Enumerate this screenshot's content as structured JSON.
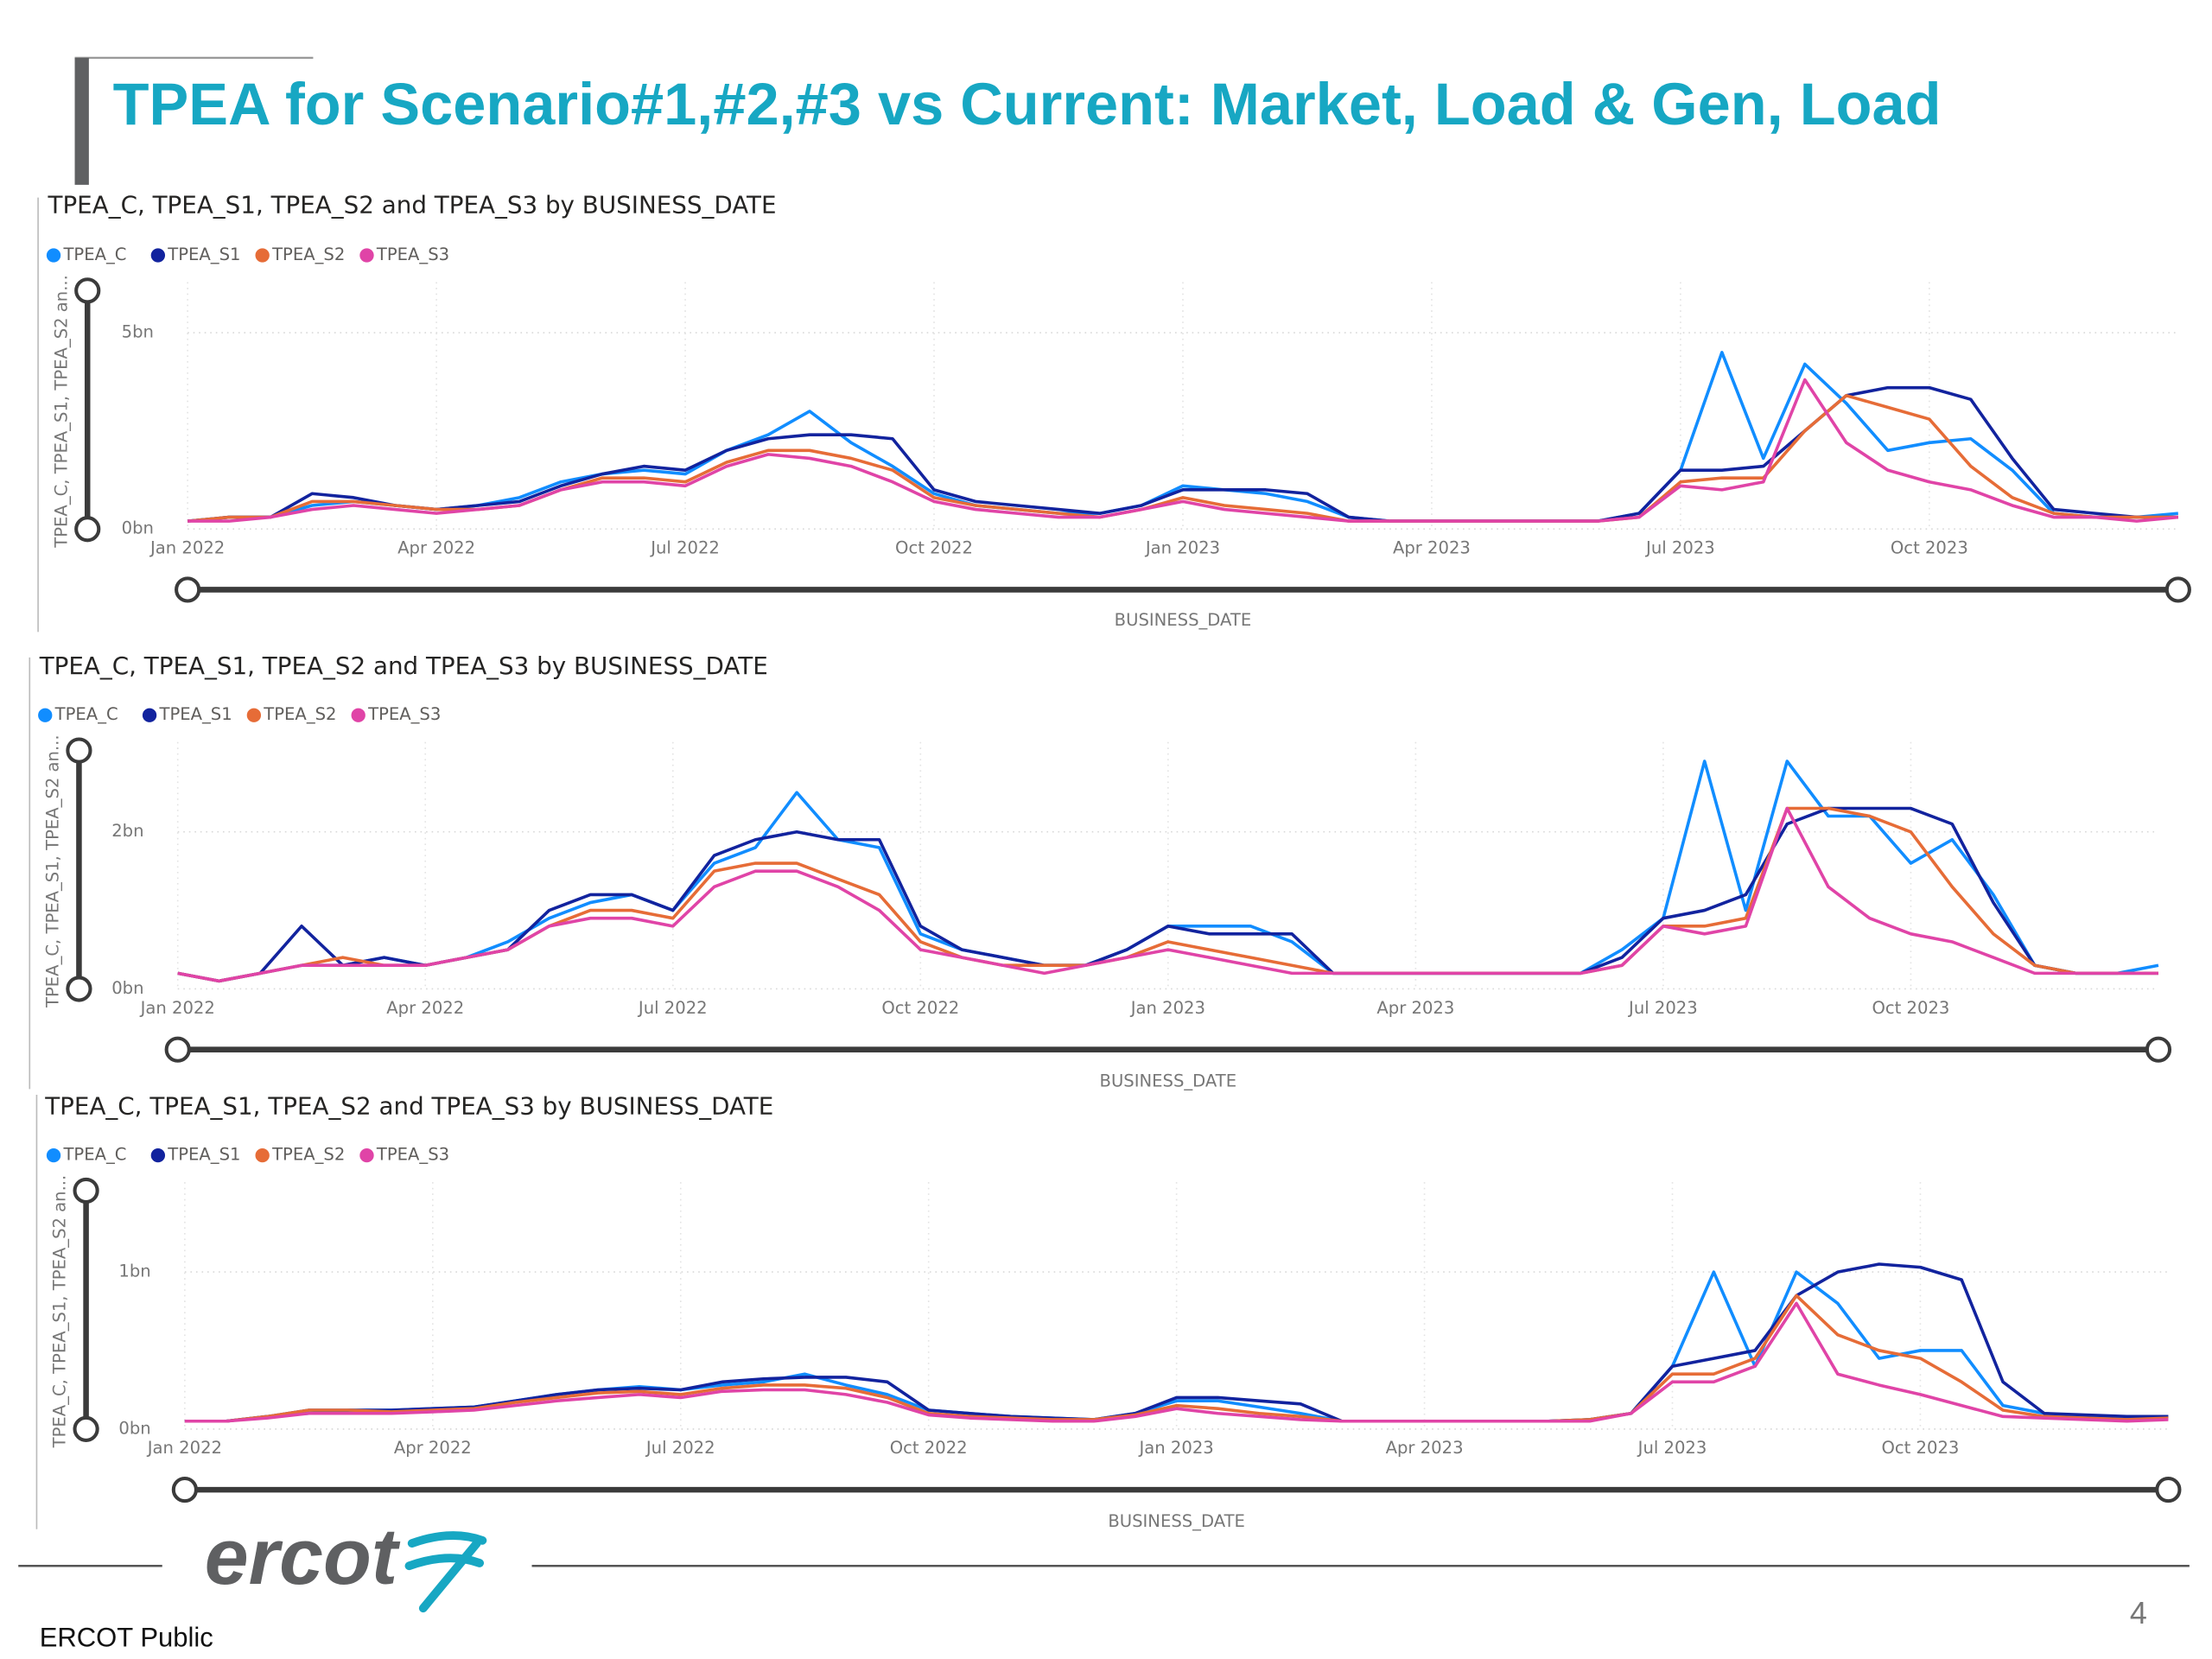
{
  "header": {
    "title": "TPEA for Scenario#1,#2,#3 vs Current: Market, Load & Gen, Load"
  },
  "chart_data": [
    {
      "type": "line",
      "title": "TPEA_C, TPEA_S1, TPEA_S2 and TPEA_S3 by BUSINESS_DATE",
      "x_label": "BUSINESS_DATE",
      "y_label": "TPEA_C, TPEA_S1, TPEA_S2 an...",
      "x": [
        0,
        0.5,
        1,
        1.5,
        2,
        2.5,
        3,
        3.5,
        4,
        4.5,
        5,
        5.5,
        6,
        6.5,
        7,
        7.5,
        8,
        8.5,
        9,
        9.5,
        10,
        10.5,
        11,
        11.5,
        12,
        12.5,
        13,
        13.5,
        14,
        14.5,
        15,
        15.5,
        16,
        16.5,
        17,
        17.5,
        18,
        18.5,
        19,
        19.5,
        20,
        20.5,
        21,
        21.5,
        22,
        22.5,
        23,
        23.5,
        24
      ],
      "xlim": [
        0,
        24
      ],
      "xticks": [
        {
          "value": 0,
          "label": "Jan 2022"
        },
        {
          "value": 3,
          "label": "Apr 2022"
        },
        {
          "value": 6,
          "label": "Jul 2022"
        },
        {
          "value": 9,
          "label": "Oct 2022"
        },
        {
          "value": 12,
          "label": "Jan 2023"
        },
        {
          "value": 15,
          "label": "Apr 2023"
        },
        {
          "value": 18,
          "label": "Jul 2023"
        },
        {
          "value": 21,
          "label": "Oct 2023"
        }
      ],
      "ylim": [
        0,
        6
      ],
      "yticks": [
        {
          "value": 0,
          "label": "0bn"
        },
        {
          "value": 5,
          "label": "5bn"
        }
      ],
      "grid": true,
      "series": [
        {
          "name": "TPEA_C",
          "color": "#118dff",
          "values": [
            0.2,
            0.3,
            0.3,
            0.6,
            0.7,
            0.6,
            0.5,
            0.6,
            0.8,
            1.2,
            1.4,
            1.5,
            1.4,
            2.0,
            2.4,
            3.0,
            2.2,
            1.6,
            0.9,
            0.6,
            0.5,
            0.4,
            0.4,
            0.6,
            1.1,
            1.0,
            0.9,
            0.7,
            0.3,
            0.2,
            0.2,
            0.2,
            0.2,
            0.2,
            0.2,
            0.4,
            1.5,
            4.5,
            1.8,
            4.2,
            3.2,
            2.0,
            2.2,
            2.3,
            1.5,
            0.4,
            0.3,
            0.3,
            0.4
          ]
        },
        {
          "name": "TPEA_S1",
          "color": "#12239e",
          "values": [
            0.2,
            0.3,
            0.3,
            0.9,
            0.8,
            0.6,
            0.5,
            0.6,
            0.7,
            1.1,
            1.4,
            1.6,
            1.5,
            2.0,
            2.3,
            2.4,
            2.4,
            2.3,
            1.0,
            0.7,
            0.6,
            0.5,
            0.4,
            0.6,
            1.0,
            1.0,
            1.0,
            0.9,
            0.3,
            0.2,
            0.2,
            0.2,
            0.2,
            0.2,
            0.2,
            0.4,
            1.5,
            1.5,
            1.6,
            2.5,
            3.4,
            3.6,
            3.6,
            3.3,
            1.8,
            0.5,
            0.4,
            0.3,
            0.3
          ]
        },
        {
          "name": "TPEA_S2",
          "color": "#e66c37",
          "values": [
            0.2,
            0.3,
            0.3,
            0.7,
            0.7,
            0.6,
            0.5,
            0.5,
            0.6,
            1.0,
            1.3,
            1.3,
            1.2,
            1.7,
            2.0,
            2.0,
            1.8,
            1.5,
            0.8,
            0.6,
            0.5,
            0.4,
            0.3,
            0.5,
            0.8,
            0.6,
            0.5,
            0.4,
            0.2,
            0.2,
            0.2,
            0.2,
            0.2,
            0.2,
            0.2,
            0.3,
            1.2,
            1.3,
            1.3,
            2.5,
            3.4,
            3.1,
            2.8,
            1.6,
            0.8,
            0.4,
            0.3,
            0.3,
            0.3
          ]
        },
        {
          "name": "TPEA_S3",
          "color": "#e044a7",
          "values": [
            0.2,
            0.2,
            0.3,
            0.5,
            0.6,
            0.5,
            0.4,
            0.5,
            0.6,
            1.0,
            1.2,
            1.2,
            1.1,
            1.6,
            1.9,
            1.8,
            1.6,
            1.2,
            0.7,
            0.5,
            0.4,
            0.3,
            0.3,
            0.5,
            0.7,
            0.5,
            0.4,
            0.3,
            0.2,
            0.2,
            0.2,
            0.2,
            0.2,
            0.2,
            0.2,
            0.3,
            1.1,
            1.0,
            1.2,
            3.8,
            2.2,
            1.5,
            1.2,
            1.0,
            0.6,
            0.3,
            0.3,
            0.2,
            0.3
          ]
        }
      ]
    },
    {
      "type": "line",
      "title": "TPEA_C, TPEA_S1, TPEA_S2 and TPEA_S3 by BUSINESS_DATE",
      "x_label": "BUSINESS_DATE",
      "y_label": "TPEA_C, TPEA_S1, TPEA_S2 an...",
      "x": [
        0,
        0.5,
        1,
        1.5,
        2,
        2.5,
        3,
        3.5,
        4,
        4.5,
        5,
        5.5,
        6,
        6.5,
        7,
        7.5,
        8,
        8.5,
        9,
        9.5,
        10,
        10.5,
        11,
        11.5,
        12,
        12.5,
        13,
        13.5,
        14,
        14.5,
        15,
        15.5,
        16,
        16.5,
        17,
        17.5,
        18,
        18.5,
        19,
        19.5,
        20,
        20.5,
        21,
        21.5,
        22,
        22.5,
        23,
        23.5,
        24
      ],
      "xlim": [
        0,
        24
      ],
      "xticks": [
        {
          "value": 0,
          "label": "Jan 2022"
        },
        {
          "value": 3,
          "label": "Apr 2022"
        },
        {
          "value": 6,
          "label": "Jul 2022"
        },
        {
          "value": 9,
          "label": "Oct 2022"
        },
        {
          "value": 12,
          "label": "Jan 2023"
        },
        {
          "value": 15,
          "label": "Apr 2023"
        },
        {
          "value": 18,
          "label": "Jul 2023"
        },
        {
          "value": 21,
          "label": "Oct 2023"
        }
      ],
      "ylim": [
        0,
        3
      ],
      "yticks": [
        {
          "value": 0,
          "label": "0bn"
        },
        {
          "value": 2,
          "label": "2bn"
        }
      ],
      "grid": true,
      "series": [
        {
          "name": "TPEA_C",
          "color": "#118dff",
          "values": [
            0.2,
            0.1,
            0.2,
            0.3,
            0.3,
            0.4,
            0.3,
            0.4,
            0.6,
            0.9,
            1.1,
            1.2,
            1.0,
            1.6,
            1.8,
            2.5,
            1.9,
            1.8,
            0.7,
            0.5,
            0.4,
            0.3,
            0.3,
            0.5,
            0.8,
            0.8,
            0.8,
            0.6,
            0.2,
            0.2,
            0.2,
            0.2,
            0.2,
            0.2,
            0.2,
            0.5,
            0.9,
            2.9,
            1.0,
            2.9,
            2.2,
            2.2,
            1.6,
            1.9,
            1.2,
            0.3,
            0.2,
            0.2,
            0.3
          ]
        },
        {
          "name": "TPEA_S1",
          "color": "#12239e",
          "values": [
            0.2,
            0.1,
            0.2,
            0.8,
            0.3,
            0.4,
            0.3,
            0.4,
            0.5,
            1.0,
            1.2,
            1.2,
            1.0,
            1.7,
            1.9,
            2.0,
            1.9,
            1.9,
            0.8,
            0.5,
            0.4,
            0.3,
            0.3,
            0.5,
            0.8,
            0.7,
            0.7,
            0.7,
            0.2,
            0.2,
            0.2,
            0.2,
            0.2,
            0.2,
            0.2,
            0.4,
            0.9,
            1.0,
            1.2,
            2.1,
            2.3,
            2.3,
            2.3,
            2.1,
            1.1,
            0.3,
            0.2,
            0.2,
            0.2
          ]
        },
        {
          "name": "TPEA_S2",
          "color": "#e66c37",
          "values": [
            0.2,
            0.1,
            0.2,
            0.3,
            0.4,
            0.3,
            0.3,
            0.4,
            0.5,
            0.8,
            1.0,
            1.0,
            0.9,
            1.5,
            1.6,
            1.6,
            1.4,
            1.2,
            0.6,
            0.4,
            0.3,
            0.3,
            0.3,
            0.4,
            0.6,
            0.5,
            0.4,
            0.3,
            0.2,
            0.2,
            0.2,
            0.2,
            0.2,
            0.2,
            0.2,
            0.3,
            0.8,
            0.8,
            0.9,
            2.3,
            2.3,
            2.2,
            2.0,
            1.3,
            0.7,
            0.3,
            0.2,
            0.2,
            0.2
          ]
        },
        {
          "name": "TPEA_S3",
          "color": "#e044a7",
          "values": [
            0.2,
            0.1,
            0.2,
            0.3,
            0.3,
            0.3,
            0.3,
            0.4,
            0.5,
            0.8,
            0.9,
            0.9,
            0.8,
            1.3,
            1.5,
            1.5,
            1.3,
            1.0,
            0.5,
            0.4,
            0.3,
            0.2,
            0.3,
            0.4,
            0.5,
            0.4,
            0.3,
            0.2,
            0.2,
            0.2,
            0.2,
            0.2,
            0.2,
            0.2,
            0.2,
            0.3,
            0.8,
            0.7,
            0.8,
            2.3,
            1.3,
            0.9,
            0.7,
            0.6,
            0.4,
            0.2,
            0.2,
            0.2,
            0.2
          ]
        }
      ]
    },
    {
      "type": "line",
      "title": "TPEA_C, TPEA_S1, TPEA_S2 and TPEA_S3 by BUSINESS_DATE",
      "x_label": "BUSINESS_DATE",
      "y_label": "TPEA_C, TPEA_S1, TPEA_S2 an...",
      "x": [
        0,
        0.5,
        1,
        1.5,
        2,
        2.5,
        3,
        3.5,
        4,
        4.5,
        5,
        5.5,
        6,
        6.5,
        7,
        7.5,
        8,
        8.5,
        9,
        9.5,
        10,
        10.5,
        11,
        11.5,
        12,
        12.5,
        13,
        13.5,
        14,
        14.5,
        15,
        15.5,
        16,
        16.5,
        17,
        17.5,
        18,
        18.5,
        19,
        19.5,
        20,
        20.5,
        21,
        21.5,
        22,
        22.5,
        23,
        23.5,
        24
      ],
      "xlim": [
        0,
        24
      ],
      "xticks": [
        {
          "value": 0,
          "label": "Jan 2022"
        },
        {
          "value": 3,
          "label": "Apr 2022"
        },
        {
          "value": 6,
          "label": "Jul 2022"
        },
        {
          "value": 9,
          "label": "Oct 2022"
        },
        {
          "value": 12,
          "label": "Jan 2023"
        },
        {
          "value": 15,
          "label": "Apr 2023"
        },
        {
          "value": 18,
          "label": "Jul 2023"
        },
        {
          "value": 21,
          "label": "Oct 2023"
        }
      ],
      "ylim": [
        0,
        1.5
      ],
      "yticks": [
        {
          "value": 0,
          "label": "0bn"
        },
        {
          "value": 1,
          "label": "1bn"
        }
      ],
      "grid": true,
      "series": [
        {
          "name": "TPEA_C",
          "color": "#118dff",
          "values": [
            0.05,
            0.05,
            0.08,
            0.1,
            0.12,
            0.12,
            0.13,
            0.14,
            0.18,
            0.22,
            0.25,
            0.27,
            0.25,
            0.28,
            0.3,
            0.35,
            0.28,
            0.22,
            0.12,
            0.1,
            0.08,
            0.07,
            0.06,
            0.1,
            0.18,
            0.18,
            0.14,
            0.1,
            0.05,
            0.05,
            0.05,
            0.05,
            0.05,
            0.05,
            0.06,
            0.1,
            0.4,
            1.0,
            0.4,
            1.0,
            0.8,
            0.45,
            0.5,
            0.5,
            0.15,
            0.1,
            0.08,
            0.06,
            0.08
          ]
        },
        {
          "name": "TPEA_S1",
          "color": "#12239e",
          "values": [
            0.05,
            0.05,
            0.08,
            0.12,
            0.12,
            0.12,
            0.13,
            0.14,
            0.18,
            0.22,
            0.25,
            0.26,
            0.25,
            0.3,
            0.32,
            0.33,
            0.33,
            0.3,
            0.12,
            0.1,
            0.08,
            0.07,
            0.06,
            0.1,
            0.2,
            0.2,
            0.18,
            0.16,
            0.05,
            0.05,
            0.05,
            0.05,
            0.05,
            0.05,
            0.06,
            0.1,
            0.4,
            0.45,
            0.5,
            0.85,
            1.0,
            1.05,
            1.03,
            0.95,
            0.3,
            0.1,
            0.09,
            0.08,
            0.08
          ]
        },
        {
          "name": "TPEA_S2",
          "color": "#e66c37",
          "values": [
            0.05,
            0.05,
            0.08,
            0.12,
            0.12,
            0.11,
            0.12,
            0.13,
            0.17,
            0.2,
            0.23,
            0.24,
            0.22,
            0.26,
            0.28,
            0.28,
            0.26,
            0.2,
            0.1,
            0.08,
            0.07,
            0.06,
            0.06,
            0.09,
            0.15,
            0.13,
            0.1,
            0.08,
            0.05,
            0.05,
            0.05,
            0.05,
            0.05,
            0.05,
            0.06,
            0.1,
            0.35,
            0.35,
            0.45,
            0.85,
            0.6,
            0.5,
            0.45,
            0.3,
            0.12,
            0.08,
            0.07,
            0.06,
            0.07
          ]
        },
        {
          "name": "TPEA_S3",
          "color": "#e044a7",
          "values": [
            0.05,
            0.05,
            0.07,
            0.1,
            0.1,
            0.1,
            0.11,
            0.12,
            0.15,
            0.18,
            0.2,
            0.22,
            0.2,
            0.24,
            0.25,
            0.25,
            0.22,
            0.17,
            0.09,
            0.07,
            0.06,
            0.05,
            0.05,
            0.08,
            0.13,
            0.1,
            0.08,
            0.06,
            0.05,
            0.05,
            0.05,
            0.05,
            0.05,
            0.05,
            0.05,
            0.1,
            0.3,
            0.3,
            0.4,
            0.8,
            0.35,
            0.28,
            0.22,
            0.15,
            0.08,
            0.07,
            0.06,
            0.05,
            0.06
          ]
        }
      ]
    }
  ],
  "footer": {
    "logo": "ercot",
    "classification": "ERCOT Public",
    "page": "4"
  }
}
